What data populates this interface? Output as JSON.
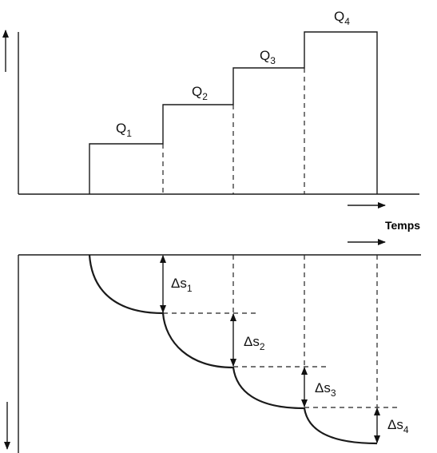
{
  "top_plot": {
    "steps": [
      {
        "label": "Q",
        "subscript": "1"
      },
      {
        "label": "Q",
        "subscript": "2"
      },
      {
        "label": "Q",
        "subscript": "3"
      },
      {
        "label": "Q",
        "subscript": "4"
      }
    ]
  },
  "time_label": "Temps",
  "bottom_plot": {
    "drawdowns": [
      {
        "label": "Δs",
        "subscript": "1"
      },
      {
        "label": "Δs",
        "subscript": "2"
      },
      {
        "label": "Δs",
        "subscript": "3"
      },
      {
        "label": "Δs",
        "subscript": "4"
      }
    ]
  }
}
